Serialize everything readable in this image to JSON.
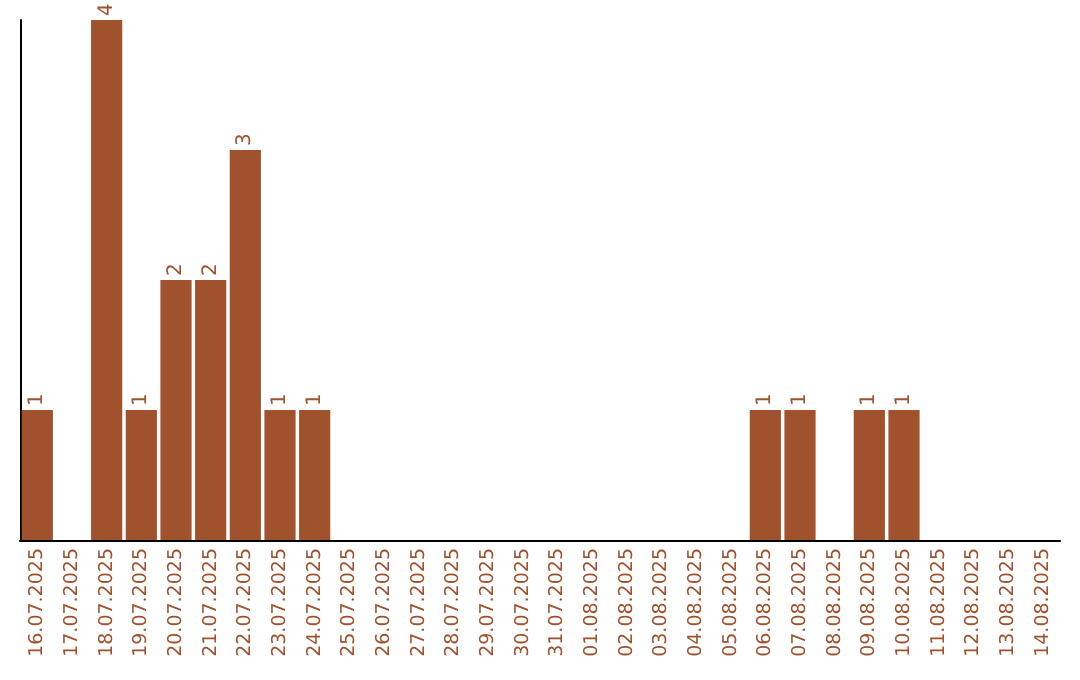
{
  "chart_data": {
    "type": "bar",
    "categories": [
      "16.07.2025",
      "17.07.2025",
      "18.07.2025",
      "19.07.2025",
      "20.07.2025",
      "21.07.2025",
      "22.07.2025",
      "23.07.2025",
      "24.07.2025",
      "25.07.2025",
      "26.07.2025",
      "27.07.2025",
      "28.07.2025",
      "29.07.2025",
      "30.07.2025",
      "31.07.2025",
      "01.08.2025",
      "02.08.2025",
      "03.08.2025",
      "04.08.2025",
      "05.08.2025",
      "06.08.2025",
      "07.08.2025",
      "08.08.2025",
      "09.08.2025",
      "10.08.2025",
      "11.08.2025",
      "12.08.2025",
      "13.08.2025",
      "14.08.2025"
    ],
    "values": [
      1,
      0,
      4,
      1,
      2,
      2,
      3,
      1,
      1,
      0,
      0,
      0,
      0,
      0,
      0,
      0,
      0,
      0,
      0,
      0,
      0,
      1,
      1,
      0,
      1,
      1,
      0,
      0,
      0,
      0
    ],
    "value_labels": [
      "1",
      null,
      "4",
      "1",
      "2",
      "2",
      "3",
      "1",
      "1",
      null,
      null,
      null,
      null,
      null,
      null,
      null,
      null,
      null,
      null,
      null,
      null,
      "1",
      "1",
      null,
      "1",
      "1",
      null,
      null,
      null,
      null
    ],
    "color": "#a0522d"
  }
}
